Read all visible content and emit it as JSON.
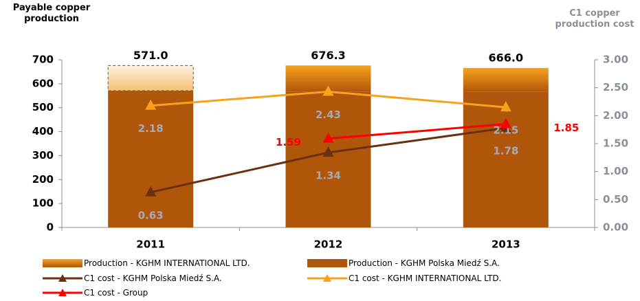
{
  "chart_data": {
    "type": "bar_line",
    "y_title": "Payable copper production",
    "y2_title": "C1 copper production cost",
    "categories": [
      "2011",
      "2012",
      "2013"
    ],
    "bars": [
      {
        "name": "Production - KGHM Polska Miedź S.A.",
        "color": "#b0560b",
        "values": [
          571.0,
          565.8,
          565.6
        ]
      },
      {
        "name": "Production - KGHM INTERNATIONAL LTD.",
        "color": "#f7a21b",
        "values": [
          105,
          110.5,
          100.4
        ],
        "estimated": [
          true,
          false,
          false
        ]
      }
    ],
    "bar_labels": [
      "571.0",
      "676.3",
      "666.0"
    ],
    "series": [
      {
        "name": "C1 cost - KGHM Polska Miedź S.A.",
        "color": "#6b3010",
        "axis": "y2",
        "values": [
          0.63,
          1.34,
          1.78
        ],
        "label_color": "#a3abbb",
        "label_pos": "below"
      },
      {
        "name": "C1 cost - KGHM INTERNATIONAL LTD.",
        "color": "#f8a21c",
        "axis": "y2",
        "values": [
          2.18,
          2.43,
          2.15
        ],
        "label_color": "#a3abbb",
        "label_pos": "below"
      },
      {
        "name": "C1 cost - Group",
        "color": "#ff0000",
        "axis": "y2",
        "values": [
          null,
          1.59,
          1.85
        ],
        "label_color": "#ff0000",
        "label_pos": "side"
      }
    ],
    "ylim": [
      0,
      700
    ],
    "yticks": [
      0,
      100,
      200,
      300,
      400,
      500,
      600,
      700
    ],
    "y2lim": [
      0,
      3
    ],
    "y2ticks": [
      {
        "value": 0,
        "label": "0.00"
      },
      {
        "value": 0.5,
        "label": "0.50"
      },
      {
        "value": 1,
        "label": "1.00"
      },
      {
        "value": 1.5,
        "label": "1.50"
      },
      {
        "value": 2,
        "label": "2.00"
      },
      {
        "value": 2.5,
        "label": "2.50"
      },
      {
        "value": 3,
        "label": "3.00"
      }
    ],
    "grid": false
  }
}
